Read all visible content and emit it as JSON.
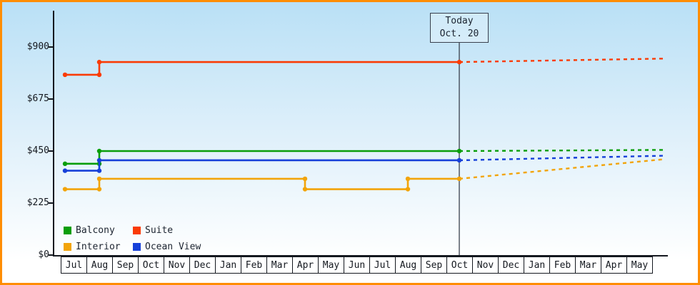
{
  "frame": {
    "border_color": "#ff8d00",
    "background_top": "#b9e0f6",
    "background_bottom": "#ffffff"
  },
  "chart_data": {
    "type": "line",
    "title": "",
    "description": "Cabin price history by category with dotted forecast after today marker",
    "y_axis": {
      "tick_labels": [
        "$0",
        "$225",
        "$450",
        "$675",
        "$900"
      ],
      "tick_values": [
        0,
        225,
        450,
        675,
        900
      ],
      "ylim": [
        0,
        1050
      ],
      "grid": false
    },
    "x_axis": {
      "months": [
        "Jul",
        "Aug",
        "Sep",
        "Oct",
        "Nov",
        "Dec",
        "Jan",
        "Feb",
        "Mar",
        "Apr",
        "May",
        "Jun",
        "Jul",
        "Aug",
        "Sep",
        "Oct",
        "Nov",
        "Dec",
        "Jan",
        "Feb",
        "Mar",
        "Apr",
        "May"
      ]
    },
    "today": {
      "label_line1": "Today",
      "label_line2": "Oct. 20",
      "month_index": 15
    },
    "series": [
      {
        "name": "Balcony",
        "color": "#0a9e0a",
        "history": [
          {
            "month_index": 0,
            "value": 395
          },
          {
            "month_index": 1,
            "value": 450
          }
        ],
        "value_at_today": 450,
        "forecast_value": 455
      },
      {
        "name": "Suite",
        "color": "#fa3b05",
        "history": [
          {
            "month_index": 0,
            "value": 780
          },
          {
            "month_index": 1,
            "value": 835
          }
        ],
        "value_at_today": 835,
        "forecast_value": 850
      },
      {
        "name": "Interior",
        "color": "#f2a40a",
        "history": [
          {
            "month_index": 0,
            "value": 285
          },
          {
            "month_index": 1,
            "value": 330
          },
          {
            "month_index": 9,
            "value": 285
          },
          {
            "month_index": 13,
            "value": 330
          }
        ],
        "value_at_today": 330,
        "forecast_value": 415
      },
      {
        "name": "Ocean View",
        "color": "#1640d9",
        "history": [
          {
            "month_index": 0,
            "value": 365
          },
          {
            "month_index": 1,
            "value": 410
          }
        ],
        "value_at_today": 410,
        "forecast_value": 430
      }
    ],
    "legend": {
      "position": "bottom-left",
      "rows": [
        [
          "Balcony",
          "Suite"
        ],
        [
          "Interior",
          "Ocean View"
        ]
      ]
    }
  }
}
